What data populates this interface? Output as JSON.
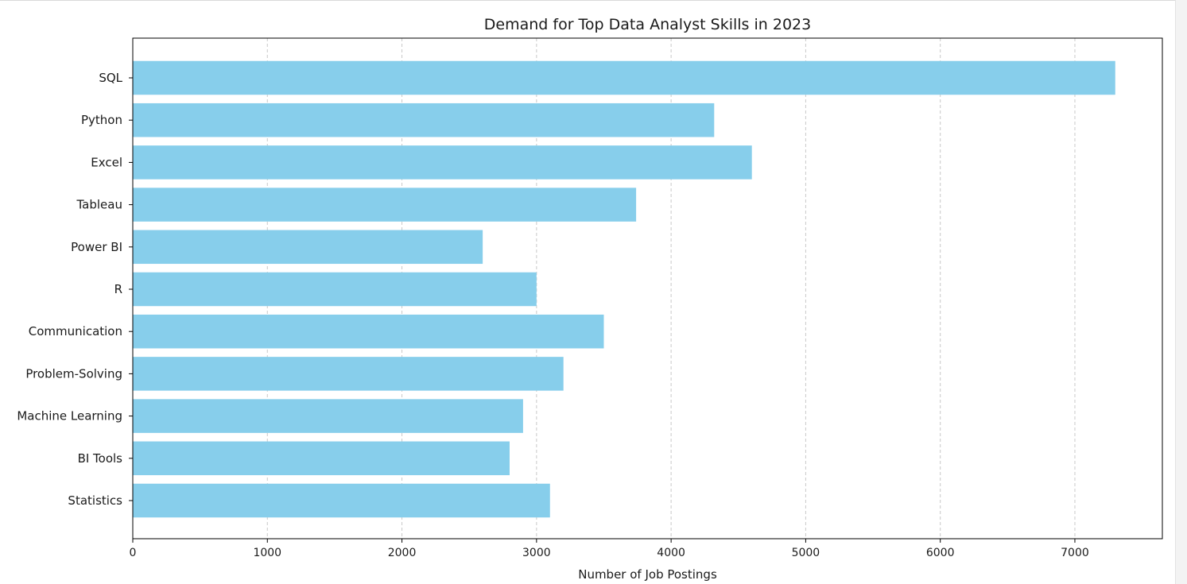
{
  "chart_data": {
    "type": "bar",
    "orientation": "horizontal",
    "title": "Demand for Top Data Analyst Skills in 2023",
    "xlabel": "Number of Job Postings",
    "ylabel": "",
    "categories": [
      "SQL",
      "Python",
      "Excel",
      "Tableau",
      "Power BI",
      "R",
      "Communication",
      "Problem-Solving",
      "Machine Learning",
      "BI Tools",
      "Statistics"
    ],
    "values": [
      7300,
      4320,
      4600,
      3740,
      2600,
      3000,
      3500,
      3200,
      2900,
      2800,
      3100
    ],
    "xlim": [
      0,
      7650
    ],
    "xticks": [
      0,
      1000,
      2000,
      3000,
      4000,
      5000,
      6000,
      7000
    ],
    "grid": "x-dashed",
    "bar_color": "#87ceeb",
    "grid_color": "#c8c8c8",
    "axis_color": "#000000",
    "text_color": "#1a1a1a"
  }
}
